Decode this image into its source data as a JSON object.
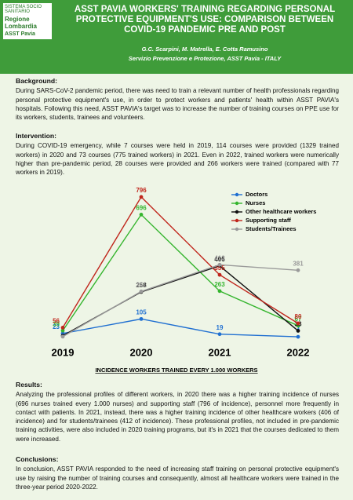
{
  "header": {
    "logo_top": "SISTEMA SOCIO SANITARIO",
    "logo_region": "Regione Lombardia",
    "logo_asst": "ASST Pavia",
    "title": "ASST PAVIA WORKERS' TRAINING REGARDING PERSONAL PROTECTIVE EQUIPMENT'S USE: COMPARISON BETWEEN COVID-19 PANDEMIC PRE AND POST",
    "authors": "G.C. Scarpini, M. Matrella, E. Cotta Ramusino",
    "affiliation": "Servizio Prevenzione e Protezione, ASST Pavia - ITALY"
  },
  "sections": [
    {
      "heading": "Background:",
      "text": "During SARS-CoV-2 pandemic period, there was need to train a relevant number of health professionals regarding personal protective equipment's use, in order to protect workers and patients' health within ASST PAVIA's hospitals. Following this need, ASST PAVIA's target was to increase the number of training courses on PPE use for its workers, students, trainees and volunteers."
    },
    {
      "heading": "Intervention:",
      "text": "During COVID-19 emergency, while 7 courses were held in 2019, 114 courses were provided (1329 trained workers) in 2020 and 73 courses (775 trained workers) in 2021. Even in 2022, trained workers were numerically higher than pre-pandemic period, 28 courses were provided and 266 workers were trained (compared with 77 workers in 2019)."
    },
    {
      "heading": "Results:",
      "text": "Analyzing the professional profiles of different workers, in 2020 there was a higher training incidence of nurses (696 nurses trained every 1.000 nurses) and supporting staff (796 of incidence), personnel more frequently in contact with patients. In 2021, instead, there was a higher training incidence of other healthcare workers (406 of incidence) and for students/trainees (412 of incidence). These professional profiles, not included in pre-pandemic training activities, were also included in 2020 training programs, but it's in 2021 that the courses dedicated to them were increased."
    },
    {
      "heading": "Conclusions:",
      "text": "In conclusion, ASST PAVIA responded to the need of increasing staff training on personal protective equipment's use by raising the number of training courses and consequently, almost all healthcare workers were trained in the three-year period 2020-2022."
    }
  ],
  "chart_data": {
    "type": "line",
    "xlabel": "INCIDENCE WORKERS TRAINED EVERY 1.000 WORKERS",
    "categories": [
      "2019",
      "2020",
      "2021",
      "2022"
    ],
    "ylim": [
      0,
      800
    ],
    "series": [
      {
        "name": "Doctors",
        "color": "#1f6fd1",
        "values": [
          23,
          105,
          19,
          4
        ]
      },
      {
        "name": "Nurses",
        "color": "#35b52e",
        "values": [
          39,
          696,
          263,
          67
        ]
      },
      {
        "name": "Other healthcare workers",
        "color": "#111111",
        "values": [
          10,
          258,
          406,
          38
        ],
        "value_labels": [
          null,
          "258",
          "406",
          "38"
        ]
      },
      {
        "name": "Supporting staff",
        "color": "#c0261c",
        "values": [
          56,
          796,
          355,
          80
        ]
      },
      {
        "name": "Students/Trainees",
        "color": "#9a9a9a",
        "values": [
          5,
          261,
          412,
          381
        ],
        "value_labels": [
          null,
          "261",
          "412",
          "381"
        ]
      }
    ]
  }
}
